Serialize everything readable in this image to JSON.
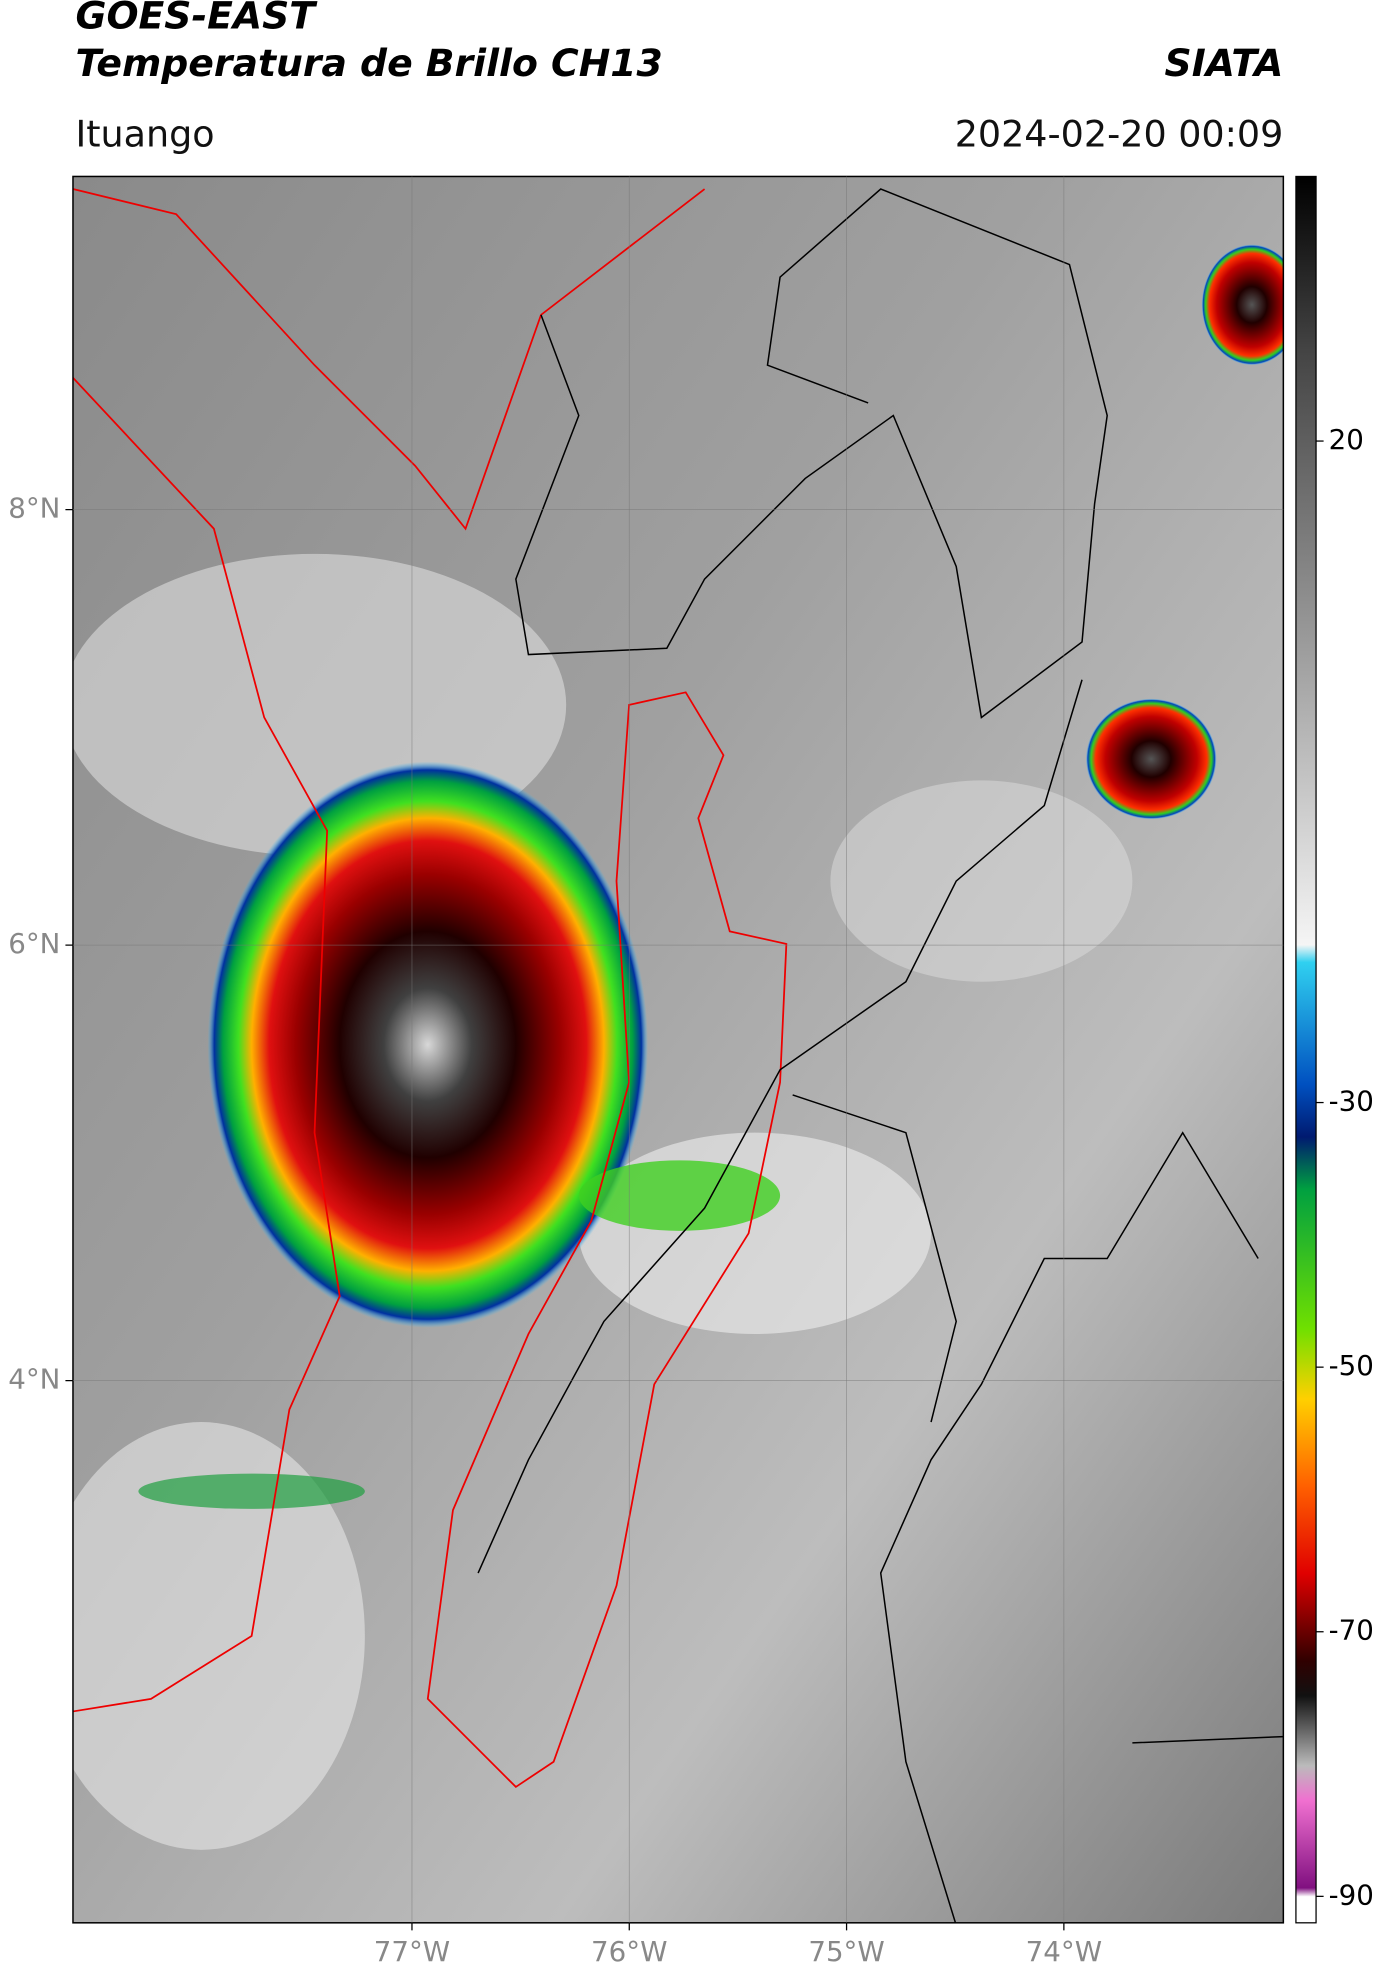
{
  "header": {
    "title": "GOES-EAST",
    "subtitle": "Temperatura de Brillo CH13",
    "source": "SIATA",
    "region": "Ituango",
    "timestamp": "2024-02-20 00:09"
  },
  "map": {
    "xlim": [
      -78.56,
      -72.99
    ],
    "ylim": [
      1.51,
      9.53
    ],
    "xticks": [
      {
        "value": -77,
        "label": "77°W"
      },
      {
        "value": -76,
        "label": "76°W"
      },
      {
        "value": -75,
        "label": "75°W"
      },
      {
        "value": -74,
        "label": "74°W"
      }
    ],
    "yticks": [
      {
        "value": 8,
        "label": "8°N"
      },
      {
        "value": 6,
        "label": "6°N"
      },
      {
        "value": 4,
        "label": "4°N"
      }
    ]
  },
  "colorbar": {
    "lim": [
      -92,
      40
    ],
    "ticks": [
      20,
      -30,
      -50,
      -70,
      -90
    ]
  }
}
